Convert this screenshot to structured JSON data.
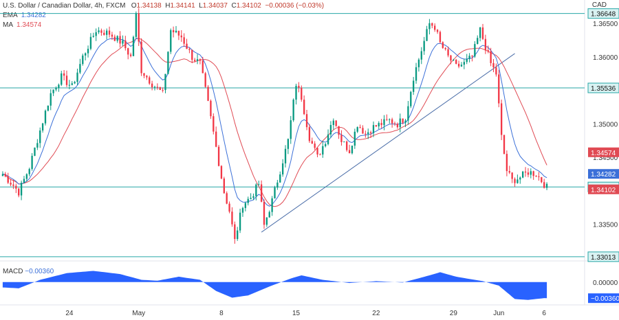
{
  "chart_data": {
    "type": "candlestick",
    "title": "U.S. Dollar / Canadian Dollar, 4h, FXCM",
    "currency": "CAD",
    "ohlc_label": {
      "o_label": "O",
      "o": "1.34138",
      "h_label": "H",
      "h": "1.34141",
      "l_label": "L",
      "l": "1.34037",
      "c_label": "C",
      "c": "1.34102",
      "change": "−0.00036 (−0.03%)"
    },
    "indicators": {
      "ema": {
        "label": "EMA",
        "value": "1.34282",
        "color": "#3a6fd8"
      },
      "ma": {
        "label": "MA",
        "value": "1.34574",
        "color": "#e04a53"
      },
      "macd": {
        "label": "MACD",
        "value": "−0.00360",
        "color": "#2962ff"
      }
    },
    "y_axis": {
      "range": [
        1.3295,
        1.3685
      ],
      "ticks": [
        "1.36500",
        "1.36000",
        "1.35500",
        "1.35000",
        "1.34500",
        "1.33500"
      ],
      "tick_values": [
        1.365,
        1.36,
        1.355,
        1.35,
        1.345,
        1.335
      ]
    },
    "x_axis": {
      "ticks": [
        {
          "label": "24",
          "index": 25
        },
        {
          "label": "May",
          "index": 51
        },
        {
          "label": "8",
          "index": 82
        },
        {
          "label": "15",
          "index": 110
        },
        {
          "label": "22",
          "index": 140
        },
        {
          "label": "29",
          "index": 169
        },
        {
          "label": "Jun",
          "index": 186
        },
        {
          "label": "6",
          "index": 203
        }
      ]
    },
    "horizontal_levels": [
      {
        "label": "1.36648",
        "value": 1.36648
      },
      {
        "label": "1.35536",
        "value": 1.35536
      },
      {
        "label": "1.34056",
        "value": 1.34056
      },
      {
        "label": "1.33013",
        "value": 1.33013
      }
    ],
    "price_tags": [
      {
        "label": "1.34574",
        "value": 1.34574,
        "color": "#e04a53"
      },
      {
        "label": "1.34282",
        "value": 1.34282,
        "color": "#3a6fd8"
      },
      {
        "label": "1.34102",
        "value": 1.34102,
        "color": "#e04a53"
      }
    ],
    "macd_axis": {
      "ticks": [
        "0.00000"
      ],
      "tag": "−0.00360",
      "range": [
        -0.0045,
        0.0035
      ]
    },
    "trendlines": [
      {
        "from": {
          "index": 97,
          "price": 1.3338
        },
        "to": {
          "index": 192,
          "price": 1.3605
        }
      }
    ],
    "anchors": [
      [
        0,
        1.3425
      ],
      [
        4,
        1.3408
      ],
      [
        6,
        1.3398
      ],
      [
        10,
        1.3435
      ],
      [
        14,
        1.349
      ],
      [
        18,
        1.3545
      ],
      [
        22,
        1.357
      ],
      [
        26,
        1.3555
      ],
      [
        30,
        1.36
      ],
      [
        35,
        1.364
      ],
      [
        40,
        1.3635
      ],
      [
        45,
        1.362
      ],
      [
        48,
        1.36
      ],
      [
        50,
        1.3662
      ],
      [
        52,
        1.358
      ],
      [
        56,
        1.356
      ],
      [
        60,
        1.3545
      ],
      [
        63,
        1.364
      ],
      [
        67,
        1.363
      ],
      [
        71,
        1.36
      ],
      [
        74,
        1.359
      ],
      [
        77,
        1.353
      ],
      [
        80,
        1.3465
      ],
      [
        83,
        1.3398
      ],
      [
        85,
        1.337
      ],
      [
        87,
        1.3325
      ],
      [
        90,
        1.338
      ],
      [
        93,
        1.339
      ],
      [
        96,
        1.341
      ],
      [
        98,
        1.3348
      ],
      [
        101,
        1.3385
      ],
      [
        104,
        1.343
      ],
      [
        107,
        1.3475
      ],
      [
        110,
        1.356
      ],
      [
        112,
        1.354
      ],
      [
        115,
        1.348
      ],
      [
        118,
        1.345
      ],
      [
        121,
        1.3475
      ],
      [
        124,
        1.351
      ],
      [
        127,
        1.3475
      ],
      [
        130,
        1.346
      ],
      [
        133,
        1.35
      ],
      [
        136,
        1.3485
      ],
      [
        139,
        1.3495
      ],
      [
        142,
        1.35
      ],
      [
        145,
        1.3505
      ],
      [
        148,
        1.35
      ],
      [
        151,
        1.351
      ],
      [
        154,
        1.357
      ],
      [
        157,
        1.361
      ],
      [
        160,
        1.365
      ],
      [
        162,
        1.3645
      ],
      [
        164,
        1.362
      ],
      [
        167,
        1.36
      ],
      [
        170,
        1.3585
      ],
      [
        173,
        1.359
      ],
      [
        176,
        1.36
      ],
      [
        179,
        1.364
      ],
      [
        181,
        1.3615
      ],
      [
        183,
        1.359
      ],
      [
        185,
        1.3575
      ],
      [
        187,
        1.348
      ],
      [
        189,
        1.343
      ],
      [
        191,
        1.3415
      ],
      [
        194,
        1.342
      ],
      [
        197,
        1.3428
      ],
      [
        200,
        1.3425
      ],
      [
        203,
        1.341
      ]
    ],
    "macd_anchors": [
      [
        0,
        -0.0012
      ],
      [
        6,
        -0.0014
      ],
      [
        14,
        0.0005
      ],
      [
        24,
        0.002
      ],
      [
        34,
        0.0025
      ],
      [
        44,
        0.0018
      ],
      [
        52,
        0.0005
      ],
      [
        58,
        0.0003
      ],
      [
        66,
        0.0012
      ],
      [
        74,
        0.0005
      ],
      [
        80,
        -0.002
      ],
      [
        86,
        -0.0035
      ],
      [
        92,
        -0.003
      ],
      [
        100,
        -0.001
      ],
      [
        108,
        0.0008
      ],
      [
        112,
        0.0015
      ],
      [
        120,
        0.0005
      ],
      [
        130,
        -0.0002
      ],
      [
        140,
        0.0002
      ],
      [
        150,
        -0.0001
      ],
      [
        160,
        0.0015
      ],
      [
        164,
        0.0022
      ],
      [
        170,
        0.0012
      ],
      [
        180,
        0.0002
      ],
      [
        186,
        -0.0008
      ],
      [
        192,
        -0.0038
      ],
      [
        197,
        -0.004
      ],
      [
        203,
        -0.0036
      ]
    ]
  }
}
